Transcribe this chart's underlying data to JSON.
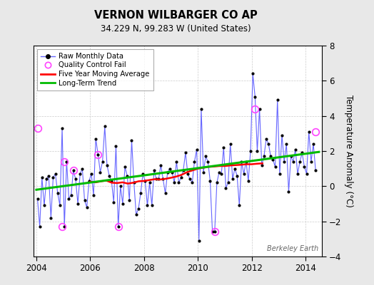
{
  "title": "VERNON WILBARGER CO AP",
  "subtitle": "34.229 N, 99.283 W (United States)",
  "ylabel": "Temperature Anomaly (°C)",
  "watermark": "Berkeley Earth",
  "xlim": [
    2003.9,
    2014.6
  ],
  "ylim": [
    -4,
    8
  ],
  "yticks": [
    -4,
    -2,
    0,
    2,
    4,
    6,
    8
  ],
  "xticks": [
    2004,
    2006,
    2008,
    2010,
    2012,
    2014
  ],
  "bg_color": "#e8e8e8",
  "plot_bg_color": "#ffffff",
  "raw_color": "#6666ff",
  "raw_marker_color": "#000000",
  "ma_color": "#ff0000",
  "trend_color": "#00bb00",
  "qc_color": "#ff44ff",
  "raw_data_x": [
    2004.042,
    2004.125,
    2004.208,
    2004.292,
    2004.375,
    2004.458,
    2004.542,
    2004.625,
    2004.708,
    2004.792,
    2004.875,
    2004.958,
    2005.042,
    2005.125,
    2005.208,
    2005.292,
    2005.375,
    2005.458,
    2005.542,
    2005.625,
    2005.708,
    2005.792,
    2005.875,
    2005.958,
    2006.042,
    2006.125,
    2006.208,
    2006.292,
    2006.375,
    2006.458,
    2006.542,
    2006.625,
    2006.708,
    2006.792,
    2006.875,
    2006.958,
    2007.042,
    2007.125,
    2007.208,
    2007.292,
    2007.375,
    2007.458,
    2007.542,
    2007.625,
    2007.708,
    2007.792,
    2007.875,
    2007.958,
    2008.042,
    2008.125,
    2008.208,
    2008.292,
    2008.375,
    2008.458,
    2008.542,
    2008.625,
    2008.708,
    2008.792,
    2008.875,
    2008.958,
    2009.042,
    2009.125,
    2009.208,
    2009.292,
    2009.375,
    2009.458,
    2009.542,
    2009.625,
    2009.708,
    2009.792,
    2009.875,
    2009.958,
    2010.042,
    2010.125,
    2010.208,
    2010.292,
    2010.375,
    2010.458,
    2010.542,
    2010.625,
    2010.708,
    2010.792,
    2010.875,
    2010.958,
    2011.042,
    2011.125,
    2011.208,
    2011.292,
    2011.375,
    2011.458,
    2011.542,
    2011.625,
    2011.708,
    2011.792,
    2011.875,
    2011.958,
    2012.042,
    2012.125,
    2012.208,
    2012.292,
    2012.375,
    2012.458,
    2012.542,
    2012.625,
    2012.708,
    2012.792,
    2012.875,
    2012.958,
    2013.042,
    2013.125,
    2013.208,
    2013.292,
    2013.375,
    2013.458,
    2013.542,
    2013.625,
    2013.708,
    2013.792,
    2013.875,
    2013.958,
    2014.042,
    2014.125,
    2014.208,
    2014.292,
    2014.375
  ],
  "raw_data_y": [
    -0.7,
    -2.3,
    0.5,
    -1.1,
    0.4,
    0.6,
    -1.8,
    0.5,
    0.7,
    -0.4,
    -1.1,
    3.3,
    -2.3,
    1.4,
    -0.7,
    -0.5,
    0.9,
    0.4,
    -1.0,
    0.7,
    1.0,
    -0.8,
    -1.2,
    0.3,
    0.7,
    -0.5,
    2.7,
    1.8,
    0.8,
    1.4,
    3.4,
    1.2,
    0.6,
    0.3,
    -0.9,
    2.3,
    -2.3,
    0.0,
    -1.0,
    1.1,
    0.6,
    -0.8,
    2.6,
    0.2,
    -1.6,
    -1.3,
    -0.4,
    0.7,
    0.3,
    -1.1,
    0.2,
    -1.1,
    0.9,
    0.4,
    0.4,
    1.2,
    0.4,
    -0.4,
    0.8,
    1.0,
    0.8,
    0.2,
    1.4,
    0.2,
    0.5,
    0.9,
    1.9,
    0.7,
    0.4,
    0.2,
    1.4,
    2.1,
    -3.1,
    4.4,
    0.8,
    1.7,
    1.4,
    0.3,
    -2.6,
    -2.6,
    0.2,
    0.8,
    0.7,
    2.2,
    -0.1,
    0.2,
    2.4,
    0.4,
    1.0,
    0.6,
    -1.1,
    1.4,
    0.7,
    1.4,
    0.3,
    2.0,
    6.4,
    5.1,
    2.0,
    4.4,
    1.2,
    1.7,
    2.7,
    2.4,
    1.7,
    1.5,
    1.1,
    4.9,
    0.7,
    2.9,
    1.4,
    2.4,
    -0.3,
    1.7,
    1.4,
    2.1,
    0.7,
    1.4,
    1.9,
    1.1,
    0.7,
    3.1,
    1.4,
    2.4,
    0.9
  ],
  "qc_fail_x": [
    2004.042,
    2004.958,
    2005.042,
    2005.375,
    2006.292,
    2007.042,
    2010.625,
    2012.125,
    2014.375
  ],
  "qc_fail_y": [
    3.3,
    -2.3,
    1.4,
    0.9,
    1.8,
    -2.3,
    -2.6,
    4.4,
    3.1
  ],
  "ma_x": [
    2006.0,
    2006.2,
    2006.4,
    2006.6,
    2006.8,
    2007.0,
    2007.2,
    2007.4,
    2007.6,
    2007.8,
    2008.0,
    2008.2,
    2008.4,
    2008.6,
    2008.8,
    2009.0,
    2009.2,
    2009.4,
    2009.6,
    2009.8,
    2010.0,
    2010.2,
    2010.4,
    2010.6,
    2010.8,
    2011.0,
    2011.2,
    2011.4,
    2011.6,
    2011.8,
    2012.0,
    2012.2,
    2012.4
  ],
  "ma_y": [
    0.25,
    0.22,
    0.28,
    0.32,
    0.2,
    0.18,
    0.22,
    0.15,
    0.2,
    0.28,
    0.3,
    0.35,
    0.4,
    0.38,
    0.42,
    0.48,
    0.55,
    0.65,
    0.8,
    0.9,
    1.0,
    1.05,
    1.1,
    1.12,
    1.15,
    1.15,
    1.18,
    1.2,
    1.22,
    1.25,
    1.25,
    1.28,
    1.3
  ],
  "trend_x": [
    2004.0,
    2014.5
  ],
  "trend_y": [
    -0.2,
    1.95
  ]
}
